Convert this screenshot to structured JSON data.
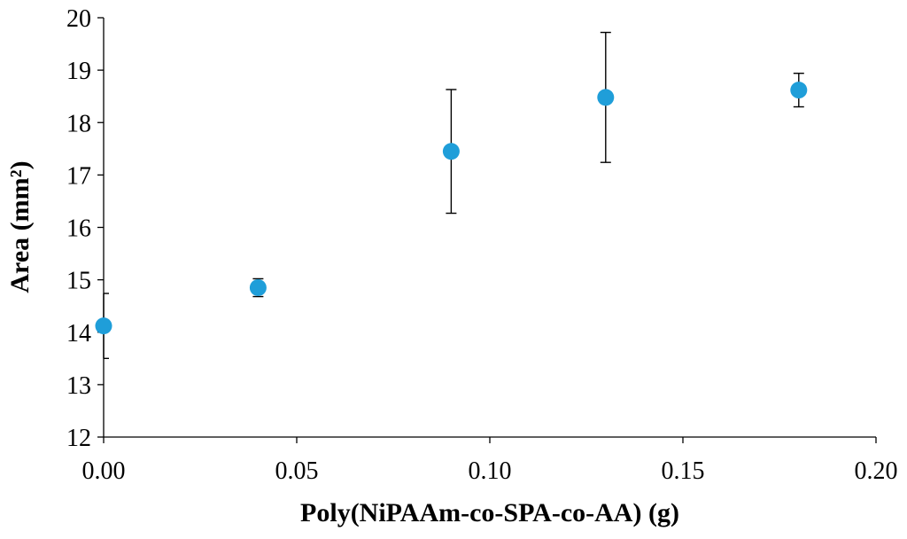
{
  "chart_data": {
    "type": "scatter",
    "xlabel": "Poly(NiPAAm-co-SPA-co-AA) (g)",
    "ylabel": "Area (mm²)",
    "xlim": [
      0.0,
      0.2
    ],
    "ylim": [
      12,
      20
    ],
    "x_ticks": [
      "0.00",
      "0.05",
      "0.10",
      "0.15",
      "0.20"
    ],
    "y_ticks": [
      "12",
      "13",
      "14",
      "15",
      "16",
      "17",
      "18",
      "19",
      "20"
    ],
    "grid": false,
    "legend": "none",
    "marker_color": "#1f9ed9",
    "errorbar_color": "#000000",
    "points": [
      {
        "x": 0.0,
        "y": 14.12,
        "err": 0.62
      },
      {
        "x": 0.04,
        "y": 14.85,
        "err": 0.17
      },
      {
        "x": 0.09,
        "y": 17.45,
        "err": 1.18
      },
      {
        "x": 0.13,
        "y": 18.48,
        "err": 1.24
      },
      {
        "x": 0.18,
        "y": 18.62,
        "err": 0.32
      }
    ]
  }
}
